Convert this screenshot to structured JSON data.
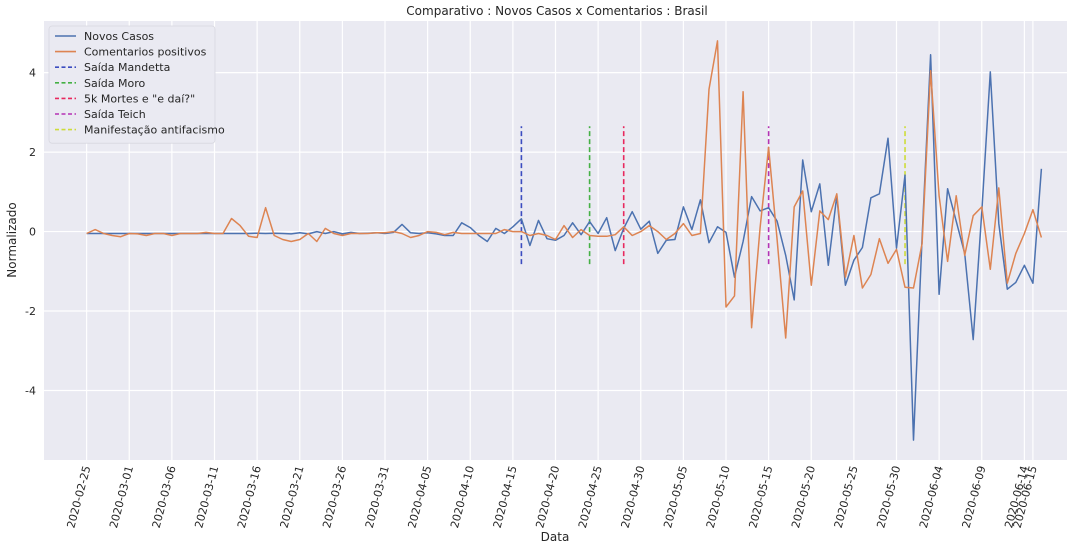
{
  "chart_data": {
    "type": "line",
    "title": "Comparativo : Novos Casos x Comentarios : Brasil",
    "xlabel": "Data",
    "ylabel": "Normalizado",
    "xlim": [
      "2020-02-20",
      "2020-06-19"
    ],
    "ylim": [
      -5.75,
      5.3
    ],
    "grid": true,
    "legend_position": "top-left",
    "x_ticks": [
      "2020-02-25",
      "2020-03-01",
      "2020-03-06",
      "2020-03-11",
      "2020-03-16",
      "2020-03-21",
      "2020-03-26",
      "2020-03-31",
      "2020-04-05",
      "2020-04-10",
      "2020-04-15",
      "2020-04-20",
      "2020-04-25",
      "2020-04-30",
      "2020-05-05",
      "2020-05-10",
      "2020-05-15",
      "2020-05-20",
      "2020-05-25",
      "2020-05-30",
      "2020-06-04",
      "2020-06-09",
      "2020-06-14",
      "2020-06-15"
    ],
    "y_ticks": [
      -4,
      -2,
      0,
      2,
      4
    ],
    "series": [
      {
        "name": "Novos Casos",
        "color": "#4c72b0",
        "start_date": "2020-02-25",
        "values": [
          -0.05,
          -0.05,
          -0.05,
          -0.05,
          -0.05,
          -0.05,
          -0.05,
          -0.05,
          -0.05,
          -0.05,
          -0.05,
          -0.05,
          -0.05,
          -0.05,
          -0.05,
          -0.05,
          -0.05,
          -0.05,
          -0.05,
          -0.05,
          -0.04,
          -0.05,
          -0.04,
          -0.05,
          -0.06,
          -0.03,
          -0.06,
          0.0,
          -0.05,
          0.0,
          -0.06,
          -0.02,
          -0.05,
          -0.04,
          -0.03,
          -0.05,
          -0.02,
          0.18,
          -0.03,
          -0.05,
          -0.03,
          -0.06,
          -0.1,
          -0.1,
          0.22,
          0.1,
          -0.1,
          -0.25,
          0.08,
          -0.05,
          0.12,
          0.32,
          -0.35,
          0.28,
          -0.18,
          -0.22,
          -0.1,
          0.22,
          -0.08,
          0.25,
          -0.05,
          0.35,
          -0.48,
          0.08,
          0.5,
          0.06,
          0.26,
          -0.55,
          -0.22,
          -0.2,
          0.62,
          0.05,
          0.8,
          -0.28,
          0.12,
          -0.02,
          -1.15,
          -0.25,
          0.88,
          0.52,
          0.6,
          0.26,
          -0.6,
          -1.72,
          1.8,
          0.5,
          1.2,
          -0.85,
          0.9,
          -1.35,
          -0.72,
          -0.4,
          0.85,
          0.95,
          2.35,
          -0.42,
          1.42,
          -5.25,
          -0.15,
          4.45,
          -1.58,
          1.08,
          0.26,
          -0.55,
          -2.72,
          0.5,
          4.02,
          0.2,
          -1.45,
          -1.28,
          -0.85,
          -1.3,
          1.58
        ]
      },
      {
        "name": "Comentarios positivos",
        "color": "#dd8452",
        "start_date": "2020-02-25",
        "values": [
          -0.05,
          0.05,
          -0.05,
          -0.1,
          -0.13,
          -0.05,
          -0.06,
          -0.1,
          -0.05,
          -0.05,
          -0.1,
          -0.05,
          -0.05,
          -0.05,
          -0.02,
          -0.05,
          -0.05,
          0.33,
          0.15,
          -0.12,
          -0.15,
          0.6,
          -0.1,
          -0.2,
          -0.25,
          -0.2,
          -0.05,
          -0.25,
          0.08,
          -0.05,
          -0.1,
          -0.05,
          -0.05,
          -0.05,
          -0.03,
          -0.03,
          0.0,
          -0.05,
          -0.15,
          -0.1,
          0.0,
          -0.02,
          -0.08,
          -0.02,
          -0.05,
          -0.05,
          -0.05,
          -0.05,
          -0.05,
          0.05,
          0.0,
          0.0,
          -0.1,
          -0.05,
          -0.1,
          -0.2,
          0.15,
          -0.15,
          0.05,
          -0.1,
          -0.12,
          -0.12,
          -0.08,
          0.12,
          -0.1,
          0.0,
          0.15,
          0.0,
          -0.2,
          -0.05,
          0.2,
          -0.1,
          -0.05,
          3.58,
          4.8,
          -1.9,
          -1.62,
          3.52,
          -2.42,
          0.1,
          2.12,
          -0.2,
          -2.68,
          0.62,
          1.02,
          -1.35,
          0.52,
          0.3,
          0.95,
          -1.15,
          -0.1,
          -1.42,
          -1.08,
          -0.18,
          -0.8,
          -0.45,
          -1.4,
          -1.42,
          -0.3,
          4.05,
          0.9,
          -0.75,
          0.9,
          -0.6,
          0.4,
          0.62,
          -0.95,
          1.1,
          -1.3,
          -0.55,
          -0.05,
          0.55,
          -0.15
        ]
      }
    ],
    "events": [
      {
        "name": "Saída Mandetta",
        "date": "2020-04-16",
        "color": "#3b4cc0",
        "y0": -0.82,
        "y1": 2.65
      },
      {
        "name": "Saída Moro",
        "date": "2020-04-24",
        "color": "#44b044",
        "y0": -0.82,
        "y1": 2.65
      },
      {
        "name": "5k Mortes e \"e daí?\"",
        "date": "2020-04-28",
        "color": "#e8285e",
        "y0": -0.82,
        "y1": 2.65
      },
      {
        "name": "Saída Teich",
        "date": "2020-05-15",
        "color": "#b533b5",
        "y0": -0.82,
        "y1": 2.65
      },
      {
        "name": "Manifestação antifacismo",
        "date": "2020-05-31",
        "color": "#cddc39",
        "y0": -0.82,
        "y1": 2.65
      }
    ]
  }
}
